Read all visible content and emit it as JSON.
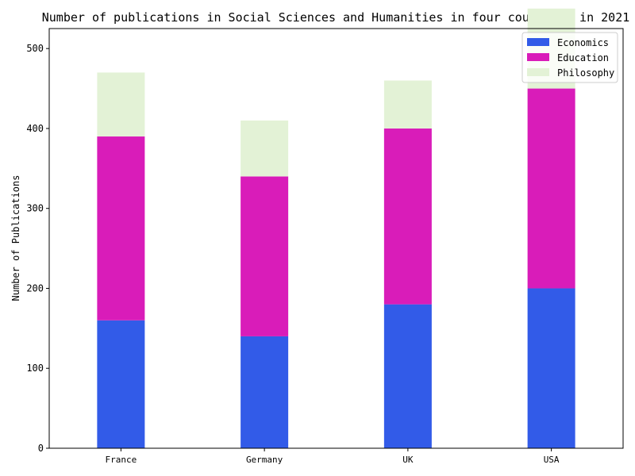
{
  "chart_data": {
    "type": "bar",
    "stacked": true,
    "title": "Number of publications in Social Sciences and Humanities in four countries in 2021",
    "xlabel": "",
    "ylabel": "Number of Publications",
    "categories": [
      "France",
      "Germany",
      "UK",
      "USA"
    ],
    "series": [
      {
        "name": "Economics",
        "values": [
          160,
          140,
          180,
          200
        ],
        "color": "#325be8"
      },
      {
        "name": "Education",
        "values": [
          230,
          200,
          220,
          250
        ],
        "color": "#d91cb9"
      },
      {
        "name": "Philosophy",
        "values": [
          80,
          70,
          60,
          100
        ],
        "color": "#e3f2d6"
      }
    ],
    "ylim": [
      0,
      525
    ],
    "yticks": [
      0,
      100,
      200,
      300,
      400,
      500
    ],
    "grid": false,
    "legend_position": "top-right"
  }
}
